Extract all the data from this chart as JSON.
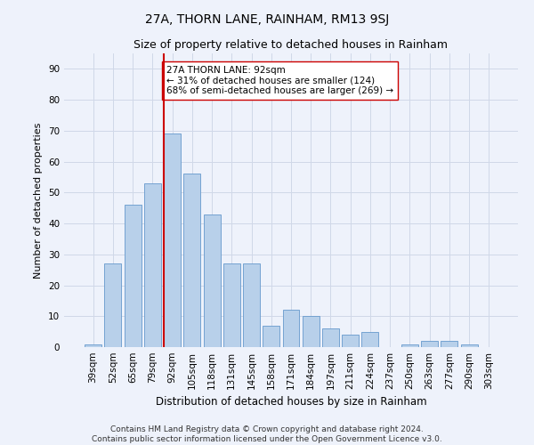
{
  "title": "27A, THORN LANE, RAINHAM, RM13 9SJ",
  "subtitle": "Size of property relative to detached houses in Rainham",
  "xlabel": "Distribution of detached houses by size in Rainham",
  "ylabel": "Number of detached properties",
  "categories": [
    "39sqm",
    "52sqm",
    "65sqm",
    "79sqm",
    "92sqm",
    "105sqm",
    "118sqm",
    "131sqm",
    "145sqm",
    "158sqm",
    "171sqm",
    "184sqm",
    "197sqm",
    "211sqm",
    "224sqm",
    "237sqm",
    "250sqm",
    "263sqm",
    "277sqm",
    "290sqm",
    "303sqm"
  ],
  "values": [
    1,
    27,
    46,
    53,
    69,
    56,
    43,
    27,
    27,
    7,
    12,
    10,
    6,
    4,
    5,
    0,
    1,
    2,
    2,
    1,
    0
  ],
  "bar_color": "#b8d0ea",
  "bar_edge_color": "#6699cc",
  "vline_color": "#cc0000",
  "annotation_text": "27A THORN LANE: 92sqm\n← 31% of detached houses are smaller (124)\n68% of semi-detached houses are larger (269) →",
  "annotation_box_color": "#ffffff",
  "annotation_box_edge_color": "#cc0000",
  "ylim": [
    0,
    95
  ],
  "yticks": [
    0,
    10,
    20,
    30,
    40,
    50,
    60,
    70,
    80,
    90
  ],
  "grid_color": "#d0d8e8",
  "background_color": "#eef2fb",
  "footer": "Contains HM Land Registry data © Crown copyright and database right 2024.\nContains public sector information licensed under the Open Government Licence v3.0.",
  "title_fontsize": 10,
  "subtitle_fontsize": 9,
  "xlabel_fontsize": 8.5,
  "ylabel_fontsize": 8,
  "tick_fontsize": 7.5,
  "annotation_fontsize": 7.5,
  "footer_fontsize": 6.5
}
